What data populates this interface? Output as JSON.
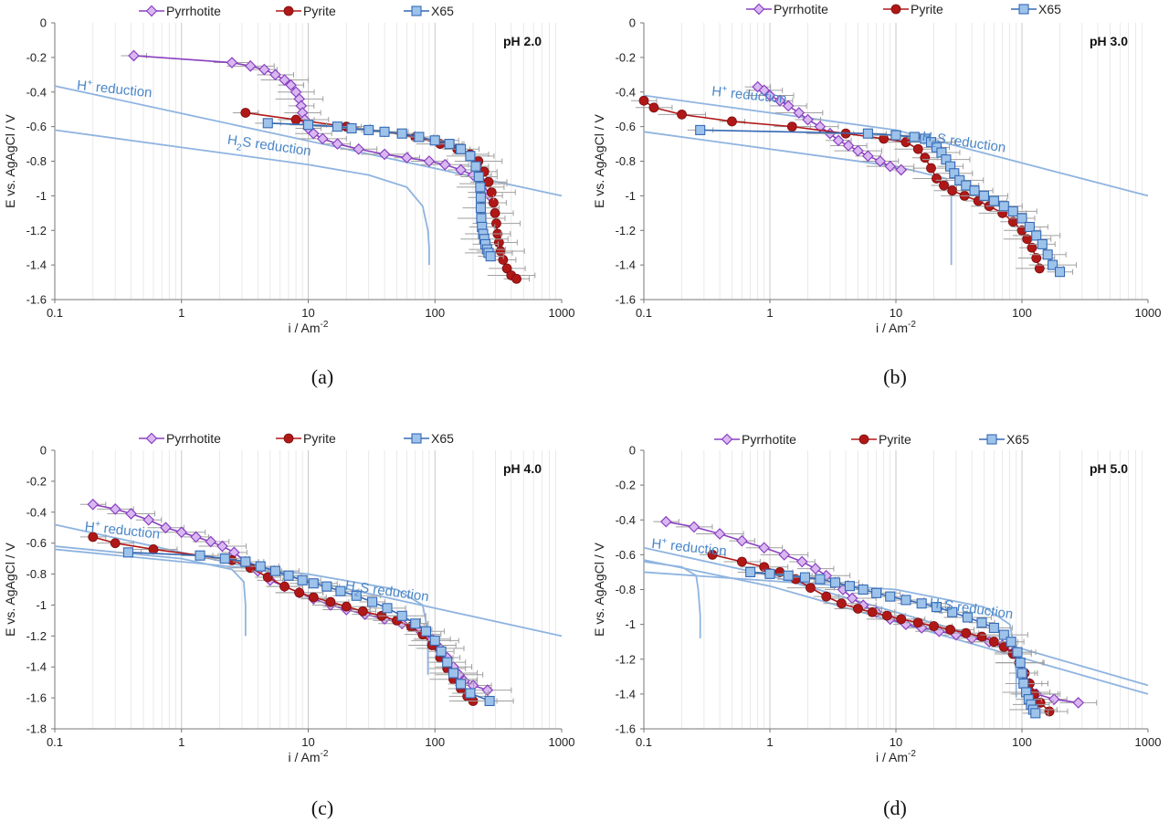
{
  "figure": {
    "legend_labels": [
      "Pyrrhotite",
      "Pyrite",
      "X65"
    ],
    "x_label": "i / Am",
    "x_label_sup": "-2",
    "y_label": "E vs. AgAgCl / V",
    "colors": {
      "pyrrhotite": "#8a40c0",
      "pyrrhotite_fill": "#d9b8f2",
      "pyrite": "#b01818",
      "x65": "#3569b6",
      "x65_fill": "#9ec3ea",
      "model": "#8fb4e0",
      "annotation": "#4a86c8"
    }
  },
  "chart_data": [
    {
      "type": "line",
      "panel": "(a)",
      "ph_label": "pH  2.0",
      "xscale": "log",
      "xlim": [
        0.1,
        1000
      ],
      "ylim": [
        -1.6,
        0
      ],
      "x_ticks": [
        "0.1",
        "1",
        "10",
        "100",
        "1000"
      ],
      "y_ticks": [
        "0",
        "-0.2",
        "-0.4",
        "-0.6",
        "-0.8",
        "-1",
        "-1.2",
        "-1.4",
        "-1.6"
      ],
      "annotations": [
        {
          "base": "H",
          "sup": "+",
          "sub": "",
          "rest": " reduction",
          "x": 0.13,
          "y": -0.385
        },
        {
          "base": "H",
          "sup": "",
          "sub": "2",
          "rest": "S reduction",
          "x": 2.0,
          "y": -0.7
        }
      ],
      "series": [
        {
          "name": "Pyrrhotite",
          "x": [
            0.42,
            2.5,
            3.5,
            4.5,
            5.5,
            6.5,
            7.3,
            8.0,
            8.5,
            8.8,
            9.0,
            9.4,
            10,
            11,
            13,
            17,
            25,
            40,
            60,
            90,
            120,
            160,
            200,
            240,
            270
          ],
          "y": [
            -0.19,
            -0.23,
            -0.25,
            -0.27,
            -0.3,
            -0.33,
            -0.36,
            -0.4,
            -0.44,
            -0.48,
            -0.52,
            -0.56,
            -0.61,
            -0.64,
            -0.67,
            -0.7,
            -0.73,
            -0.76,
            -0.78,
            -0.8,
            -0.82,
            -0.85,
            -0.88,
            -0.93,
            -1.0
          ]
        },
        {
          "name": "Pyrite",
          "x": [
            3.2,
            8,
            20,
            40,
            70,
            110,
            150,
            190,
            220,
            245,
            265,
            280,
            290,
            298,
            305,
            312,
            320,
            330,
            345,
            370,
            400,
            440
          ],
          "y": [
            -0.52,
            -0.56,
            -0.6,
            -0.63,
            -0.66,
            -0.7,
            -0.73,
            -0.76,
            -0.8,
            -0.86,
            -0.92,
            -0.98,
            -1.04,
            -1.1,
            -1.16,
            -1.22,
            -1.27,
            -1.32,
            -1.37,
            -1.42,
            -1.46,
            -1.48
          ]
        },
        {
          "name": "X65",
          "x": [
            4.8,
            10,
            17,
            22,
            30,
            40,
            55,
            75,
            100,
            130,
            160,
            190,
            210,
            222,
            228,
            230,
            230,
            232,
            235,
            240,
            245,
            250,
            258,
            265,
            275
          ],
          "y": [
            -0.58,
            -0.59,
            -0.6,
            -0.61,
            -0.62,
            -0.63,
            -0.64,
            -0.66,
            -0.68,
            -0.7,
            -0.73,
            -0.77,
            -0.83,
            -0.89,
            -0.95,
            -1.01,
            -1.07,
            -1.13,
            -1.18,
            -1.22,
            -1.25,
            -1.28,
            -1.31,
            -1.33,
            -1.35
          ]
        }
      ],
      "model_curves": [
        {
          "name": "H+ reduction",
          "x": [
            0.1,
            1000
          ],
          "y": [
            -0.365,
            -1.0
          ]
        },
        {
          "name": "H2S reduction",
          "x": [
            0.1,
            1,
            10,
            30,
            60,
            80,
            88,
            90,
            90
          ],
          "y": [
            -0.62,
            -0.72,
            -0.82,
            -0.88,
            -0.95,
            -1.06,
            -1.2,
            -1.3,
            -1.4
          ]
        }
      ]
    },
    {
      "type": "line",
      "panel": "(b)",
      "ph_label": "pH  3.0",
      "xscale": "log",
      "xlim": [
        0.1,
        1000
      ],
      "ylim": [
        -1.6,
        0
      ],
      "x_ticks": [
        "0.1",
        "1",
        "10",
        "100",
        "1000"
      ],
      "y_ticks": [
        "0",
        "-0.2",
        "-0.4",
        "-0.6",
        "-0.8",
        "-1",
        "-1.2",
        "-1.4",
        "-1.6"
      ],
      "annotations": [
        {
          "base": "H",
          "sup": "+",
          "sub": "",
          "rest": " reduction",
          "x": 0.3,
          "y": -0.42
        },
        {
          "base": "H",
          "sup": "",
          "sub": "2",
          "rest": "S reduction",
          "x": 14,
          "y": -0.68
        }
      ],
      "series": [
        {
          "name": "Pyrrhotite",
          "x": [
            0.8,
            0.9,
            1.0,
            1.2,
            1.4,
            1.7,
            2.0,
            2.5,
            3.0,
            3.5,
            4.2,
            5.0,
            6.0,
            7.5,
            9.0,
            11
          ],
          "y": [
            -0.37,
            -0.39,
            -0.42,
            -0.45,
            -0.48,
            -0.52,
            -0.56,
            -0.6,
            -0.64,
            -0.68,
            -0.71,
            -0.74,
            -0.77,
            -0.8,
            -0.83,
            -0.85
          ]
        },
        {
          "name": "Pyrite",
          "x": [
            0.1,
            0.12,
            0.2,
            0.5,
            1.5,
            4,
            8,
            12,
            15,
            17,
            19,
            21,
            24,
            28,
            35,
            45,
            55,
            70,
            85,
            100,
            110,
            120,
            130,
            138
          ],
          "y": [
            -0.45,
            -0.49,
            -0.53,
            -0.57,
            -0.6,
            -0.64,
            -0.67,
            -0.69,
            -0.73,
            -0.78,
            -0.84,
            -0.9,
            -0.94,
            -0.97,
            -1.0,
            -1.03,
            -1.06,
            -1.1,
            -1.15,
            -1.2,
            -1.25,
            -1.3,
            -1.36,
            -1.42
          ]
        },
        {
          "name": "X65",
          "x": [
            0.28,
            6,
            10,
            14,
            17,
            19,
            21,
            23,
            25,
            27,
            29,
            32,
            36,
            42,
            50,
            60,
            72,
            85,
            100,
            115,
            130,
            145,
            160,
            175,
            200
          ],
          "y": [
            -0.62,
            -0.64,
            -0.65,
            -0.66,
            -0.67,
            -0.69,
            -0.72,
            -0.75,
            -0.79,
            -0.83,
            -0.87,
            -0.91,
            -0.94,
            -0.97,
            -1.0,
            -1.03,
            -1.06,
            -1.09,
            -1.13,
            -1.18,
            -1.23,
            -1.28,
            -1.34,
            -1.4,
            -1.44
          ]
        }
      ],
      "model_curves": [
        {
          "name": "H+ reduction",
          "x": [
            0.1,
            10,
            1000
          ],
          "y": [
            -0.42,
            -0.62,
            -1.0
          ]
        },
        {
          "name": "H2S reduction",
          "x": [
            0.1,
            10,
            25,
            27.5,
            27.5
          ],
          "y": [
            -0.63,
            -0.83,
            -0.9,
            -0.98,
            -1.4
          ]
        }
      ]
    },
    {
      "type": "line",
      "panel": "(c)",
      "ph_label": "pH  4.0",
      "xscale": "log",
      "xlim": [
        0.1,
        1000
      ],
      "ylim": [
        -1.8,
        0
      ],
      "x_ticks": [
        "0.1",
        "1",
        "10",
        "100",
        "1000"
      ],
      "y_ticks": [
        "0",
        "-0.2",
        "-0.4",
        "-0.6",
        "-0.8",
        "-1",
        "-1.2",
        "-1.4",
        "-1.6",
        "-1.8"
      ],
      "annotations": [
        {
          "base": "H",
          "sup": "+",
          "sub": "",
          "rest": " reduction",
          "x": 0.15,
          "y": -0.52
        },
        {
          "base": "H",
          "sup": "",
          "sub": "2",
          "rest": "S reduction",
          "x": 17,
          "y": -0.9
        }
      ],
      "series": [
        {
          "name": "Pyrrhotite",
          "x": [
            0.2,
            0.3,
            0.4,
            0.55,
            0.75,
            1.0,
            1.3,
            1.7,
            2.1,
            2.6,
            3.2,
            4.0,
            5.0,
            6.5,
            8.5,
            11,
            15,
            20,
            28,
            40,
            55,
            75,
            95,
            110,
            125,
            140,
            155,
            170,
            200,
            260
          ],
          "y": [
            -0.35,
            -0.38,
            -0.41,
            -0.45,
            -0.5,
            -0.53,
            -0.56,
            -0.59,
            -0.62,
            -0.66,
            -0.72,
            -0.78,
            -0.84,
            -0.88,
            -0.92,
            -0.96,
            -1.0,
            -1.03,
            -1.06,
            -1.09,
            -1.12,
            -1.16,
            -1.22,
            -1.28,
            -1.34,
            -1.4,
            -1.45,
            -1.49,
            -1.52,
            -1.55
          ]
        },
        {
          "name": "Pyrite",
          "x": [
            0.2,
            0.3,
            0.6,
            1.4,
            2.5,
            3.5,
            4.8,
            6.5,
            8.5,
            11,
            15,
            20,
            27,
            38,
            50,
            65,
            80,
            95,
            110,
            125,
            140,
            160,
            180,
            200
          ],
          "y": [
            -0.56,
            -0.6,
            -0.64,
            -0.68,
            -0.71,
            -0.76,
            -0.82,
            -0.88,
            -0.92,
            -0.95,
            -0.98,
            -1.01,
            -1.04,
            -1.07,
            -1.1,
            -1.14,
            -1.19,
            -1.26,
            -1.34,
            -1.41,
            -1.48,
            -1.54,
            -1.59,
            -1.62
          ]
        },
        {
          "name": "X65",
          "x": [
            0.38,
            1.4,
            2.2,
            3.2,
            4.2,
            5.5,
            7.0,
            9.0,
            11,
            14,
            18,
            24,
            32,
            42,
            55,
            70,
            85,
            100,
            112,
            125,
            140,
            160,
            190,
            270
          ],
          "y": [
            -0.66,
            -0.68,
            -0.7,
            -0.72,
            -0.75,
            -0.78,
            -0.81,
            -0.84,
            -0.86,
            -0.88,
            -0.91,
            -0.94,
            -0.98,
            -1.02,
            -1.07,
            -1.12,
            -1.17,
            -1.23,
            -1.3,
            -1.37,
            -1.44,
            -1.51,
            -1.57,
            -1.62
          ]
        }
      ],
      "model_curves": [
        {
          "name": "H+ reduction",
          "x": [
            0.1,
            1000
          ],
          "y": [
            -0.48,
            -1.2
          ]
        },
        {
          "name": "H2S reduction",
          "x": [
            0.1,
            10,
            50,
            80,
            87,
            88,
            88
          ],
          "y": [
            -0.64,
            -0.8,
            -0.9,
            -1.0,
            -1.15,
            -1.3,
            -1.45
          ]
        },
        {
          "name": "H2S reduction (pH 4 X65 limit)",
          "x": [
            0.1,
            1,
            2.5,
            3.1,
            3.2,
            3.2
          ],
          "y": [
            -0.62,
            -0.7,
            -0.77,
            -0.85,
            -1.0,
            -1.2
          ]
        }
      ]
    },
    {
      "type": "line",
      "panel": "(d)",
      "ph_label": "pH  5.0",
      "xscale": "log",
      "xlim": [
        0.1,
        1000
      ],
      "ylim": [
        -1.6,
        0
      ],
      "x_ticks": [
        "0.1",
        "1",
        "10",
        "100",
        "1000"
      ],
      "y_ticks": [
        "0",
        "-0.2",
        "-0.4",
        "-0.6",
        "-0.8",
        "-1",
        "-1.2",
        "-1.4",
        "-1.6"
      ],
      "annotations": [
        {
          "base": "H",
          "sup": "+",
          "sub": "",
          "rest": " reduction",
          "x": 0.1,
          "y": -0.56
        },
        {
          "base": "H",
          "sup": "",
          "sub": "2",
          "rest": "S reduction",
          "x": 16,
          "y": -0.9
        }
      ],
      "series": [
        {
          "name": "Pyrrhotite",
          "x": [
            0.15,
            0.25,
            0.4,
            0.6,
            0.9,
            1.3,
            1.8,
            2.3,
            2.8,
            3.3,
            3.8,
            4.5,
            5.5,
            7,
            9,
            12,
            16,
            22,
            30,
            40,
            55,
            70,
            85,
            95,
            105,
            115,
            130,
            180,
            280
          ],
          "y": [
            -0.41,
            -0.44,
            -0.48,
            -0.52,
            -0.56,
            -0.6,
            -0.64,
            -0.68,
            -0.72,
            -0.76,
            -0.8,
            -0.85,
            -0.89,
            -0.93,
            -0.97,
            -1.0,
            -1.02,
            -1.04,
            -1.06,
            -1.08,
            -1.1,
            -1.12,
            -1.16,
            -1.22,
            -1.28,
            -1.34,
            -1.4,
            -1.43,
            -1.45
          ]
        },
        {
          "name": "Pyrite",
          "x": [
            0.35,
            0.6,
            0.9,
            1.2,
            1.6,
            2.1,
            2.8,
            3.7,
            5,
            6.5,
            8.5,
            11,
            15,
            20,
            27,
            36,
            48,
            60,
            72,
            85,
            95,
            105,
            115,
            125,
            140,
            165
          ],
          "y": [
            -0.6,
            -0.64,
            -0.67,
            -0.7,
            -0.74,
            -0.79,
            -0.84,
            -0.88,
            -0.91,
            -0.93,
            -0.95,
            -0.97,
            -0.99,
            -1.01,
            -1.03,
            -1.05,
            -1.07,
            -1.1,
            -1.13,
            -1.17,
            -1.22,
            -1.28,
            -1.34,
            -1.4,
            -1.45,
            -1.5
          ]
        },
        {
          "name": "X65",
          "x": [
            0.7,
            1.0,
            1.4,
            1.9,
            2.5,
            3.3,
            4.3,
            5.5,
            7,
            9,
            12,
            16,
            21,
            28,
            37,
            48,
            60,
            72,
            82,
            92,
            97,
            100,
            103,
            108,
            113,
            118,
            123,
            128
          ],
          "y": [
            -0.7,
            -0.71,
            -0.72,
            -0.73,
            -0.74,
            -0.76,
            -0.78,
            -0.8,
            -0.82,
            -0.84,
            -0.86,
            -0.88,
            -0.9,
            -0.93,
            -0.96,
            -0.99,
            -1.02,
            -1.06,
            -1.1,
            -1.16,
            -1.22,
            -1.28,
            -1.34,
            -1.39,
            -1.43,
            -1.46,
            -1.49,
            -1.51
          ]
        }
      ],
      "model_curves": [
        {
          "name": "H+ reduction",
          "x": [
            0.1,
            1,
            1000
          ],
          "y": [
            -0.56,
            -0.72,
            -1.35
          ]
        },
        {
          "name": "H+ reduction (second)",
          "x": [
            0.1,
            1,
            1000
          ],
          "y": [
            -0.63,
            -0.78,
            -1.4
          ]
        },
        {
          "name": "H2S reduction",
          "x": [
            0.1,
            10,
            50,
            80,
            88,
            90,
            90
          ],
          "y": [
            -0.7,
            -0.8,
            -0.9,
            -1.0,
            -1.15,
            -1.3,
            -1.42
          ]
        },
        {
          "name": "H2S reduction (X65 limit)",
          "x": [
            0.1,
            0.2,
            0.26,
            0.27,
            0.28,
            0.28
          ],
          "y": [
            -0.64,
            -0.67,
            -0.72,
            -0.8,
            -0.95,
            -1.08
          ]
        }
      ]
    }
  ]
}
